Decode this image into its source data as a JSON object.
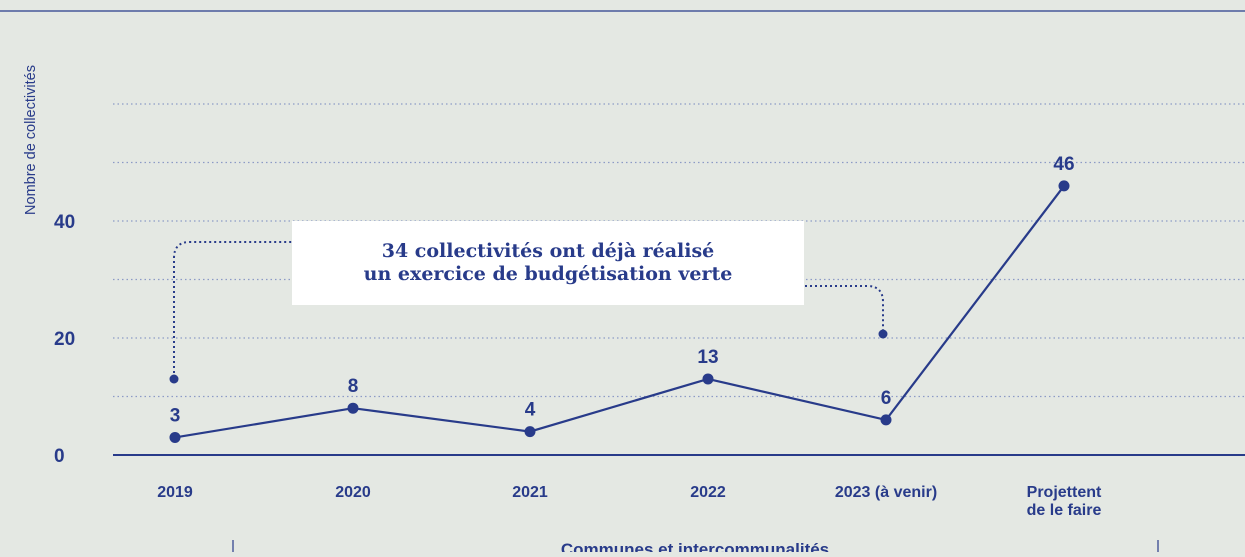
{
  "chart_data": {
    "type": "line",
    "categories": [
      "2019",
      "2020",
      "2021",
      "2022",
      "2023 (à venir)",
      "Projettent de le faire"
    ],
    "category_lines": [
      [
        "2019"
      ],
      [
        "2020"
      ],
      [
        "2021"
      ],
      [
        "2022"
      ],
      [
        "2023 (à venir)"
      ],
      [
        "Projettent",
        "de le faire"
      ]
    ],
    "values": [
      3,
      8,
      4,
      13,
      6,
      46
    ],
    "data_labels": [
      "3",
      "8",
      "4",
      "13",
      "6",
      "46"
    ],
    "title": "",
    "ylabel": "Nombre de collectivités",
    "xlabel": "Communes et intercommunalités",
    "ylim": [
      0,
      60
    ],
    "yticks": [
      "0",
      "20",
      "40"
    ],
    "ytick_values": [
      0,
      20,
      40
    ],
    "grid": true,
    "annotation": {
      "line1": "34 collectivités ont déjà réalisé",
      "line2": "un exercice de budgétisation verte",
      "bracket_from_category": "2019",
      "bracket_to_category": "2023 (à venir)"
    },
    "colors": {
      "line": "#283b8a",
      "text": "#283b8a",
      "grid": "#8c9ac6",
      "background": "#e4e8e3",
      "box": "#ffffff"
    }
  }
}
